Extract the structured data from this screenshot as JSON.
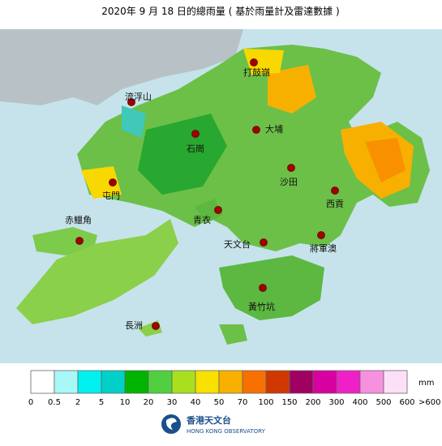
{
  "title": "2020年 9 月 18 日的總雨量 ( 基於雨量計及雷達數據 )",
  "places": [
    "打鼓嶺",
    "流浮山",
    "大埔",
    "石崗",
    "沙田",
    "屯門",
    "西貢",
    "青衣",
    "赤鱲角",
    "天文台",
    "將軍澳",
    "黃竹坑",
    "長洲"
  ],
  "legend": {
    "colors": [
      "#ffffff",
      "#a8f8f8",
      "#00f0f0",
      "#00d0c8",
      "#00b400",
      "#50d040",
      "#a8e020",
      "#f8e000",
      "#f8b000",
      "#f87000",
      "#d03800",
      "#a00060",
      "#d800a0",
      "#f020c8",
      "#f890e0",
      "#fde0f8"
    ],
    "labels": [
      "0",
      "0.5",
      "2",
      "5",
      "10",
      "20",
      "30",
      "40",
      "50",
      "70",
      "100",
      "150",
      "200",
      "300",
      "400",
      "500",
      "600",
      ">600"
    ],
    "unit": "mm"
  },
  "footer": {
    "name_zh": "香港天文台",
    "name_en": "HONG KONG OBSERVATORY"
  }
}
